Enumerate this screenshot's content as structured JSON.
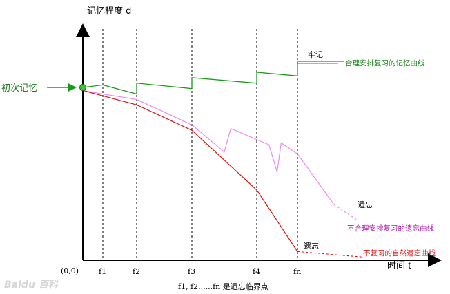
{
  "chart_data": {
    "type": "line",
    "title": "",
    "xlabel": "时间 t",
    "ylabel": "记忆程度 d",
    "origin_label": "(0,0)",
    "ticks": [
      "f1",
      "f2",
      "f3",
      "f4",
      "fn"
    ],
    "tick_positions": [
      1,
      2,
      3,
      4,
      5
    ],
    "xlim": [
      -0.5,
      7.4
    ],
    "ylim": [
      0,
      1.2
    ],
    "footnote": "f1, f2......fn 是遗忘临界点",
    "start_label": "初次记忆",
    "series": [
      {
        "name": "合理安排复习的记忆曲线",
        "color": "#1a9a1a",
        "style": "solid",
        "points": [
          [
            1,
            0.93
          ],
          [
            2,
            0.88
          ],
          [
            2,
            0.94
          ],
          [
            3,
            0.91
          ],
          [
            3,
            0.97
          ],
          [
            4,
            0.94
          ],
          [
            4,
            1.0
          ],
          [
            5,
            0.98
          ],
          [
            5,
            1.05
          ],
          [
            6.0,
            1.05
          ]
        ]
      },
      {
        "name": "不合理安排复习的遗忘曲线",
        "color": "#ee88ee",
        "style": "solid",
        "points": [
          [
            0,
            0.9
          ],
          [
            1,
            0.88
          ],
          [
            2,
            0.85
          ],
          [
            3,
            0.71
          ],
          [
            3.5,
            0.56
          ],
          [
            3.6,
            0.69
          ],
          [
            4.3,
            0.6
          ],
          [
            4.5,
            0.45
          ],
          [
            4.6,
            0.61
          ],
          [
            5,
            0.55
          ],
          [
            5.9,
            0.27
          ]
        ],
        "tail": [
          [
            5.9,
            0.27
          ],
          [
            6.5,
            0.18
          ]
        ]
      },
      {
        "name": "不复习的自然遗忘曲线",
        "color": "#dd1111",
        "style": "solid",
        "points": [
          [
            0,
            0.9
          ],
          [
            1,
            0.87
          ],
          [
            2,
            0.82
          ],
          [
            3,
            0.68
          ],
          [
            4,
            0.35
          ],
          [
            5,
            0.01
          ]
        ],
        "tail": [
          [
            5,
            0.01
          ],
          [
            6.6,
            -0.02
          ]
        ]
      }
    ],
    "annotations": [
      {
        "text": "牢记",
        "anchor": "fn-upper"
      },
      {
        "text": "遗忘",
        "anchor": "pink-end"
      },
      {
        "text": "遗忘",
        "anchor": "red-end"
      }
    ]
  },
  "watermark": "Baidu 百科"
}
